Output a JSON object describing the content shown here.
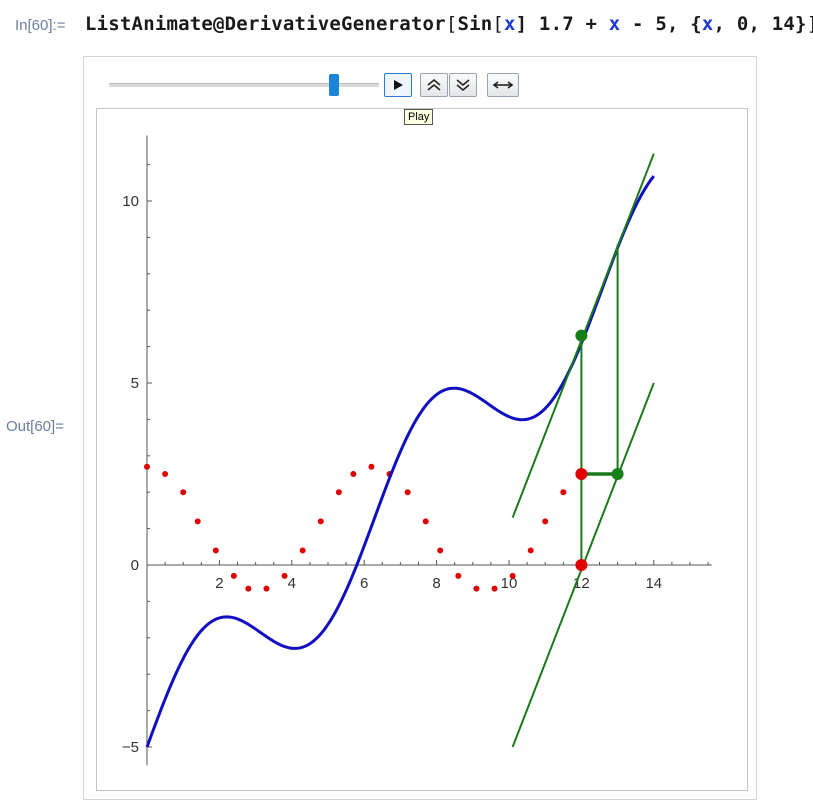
{
  "cell": {
    "in_label": "In[60]:=",
    "out_label": "Out[60]=",
    "code": {
      "fn": "ListAnimate@DerivativeGenerator",
      "open": "[",
      "sin": "Sin",
      "x": "x",
      "after_sin": "] 1.7 + ",
      "minus5": " - 5, {",
      "iter": ", 0, 14}",
      "close": "]"
    }
  },
  "controls": {
    "slider_value": 0.87,
    "tooltip": "Play",
    "play_icon": "play-icon",
    "faster_icon": "double-chevron-up-icon",
    "slower_icon": "double-chevron-down-icon",
    "direction_icon": "left-right-arrow-icon"
  },
  "chart_data": {
    "type": "line",
    "function": "Sin[x] 1.7 + x - 5",
    "xlim": [
      0,
      15.6
    ],
    "ylim": [
      -5.5,
      11.8
    ],
    "x_ticks": [
      2,
      4,
      6,
      8,
      10,
      12,
      14
    ],
    "y_ticks": [
      -5,
      0,
      5,
      10
    ],
    "curve_color": "#1010c0",
    "tangent_color": "#1a7a1a",
    "marker_red": "#e00000",
    "marker_green": "#188018",
    "derivative_points": [
      [
        0.0,
        2.7
      ],
      [
        0.5,
        2.5
      ],
      [
        1.0,
        2.0
      ],
      [
        1.4,
        1.2
      ],
      [
        1.9,
        0.4
      ],
      [
        2.4,
        -0.3
      ],
      [
        2.8,
        -0.65
      ],
      [
        3.3,
        -0.65
      ],
      [
        3.8,
        -0.3
      ],
      [
        4.3,
        0.4
      ],
      [
        4.8,
        1.2
      ],
      [
        5.3,
        2.0
      ],
      [
        5.7,
        2.5
      ],
      [
        6.2,
        2.7
      ],
      [
        6.7,
        2.5
      ],
      [
        7.2,
        2.0
      ],
      [
        7.7,
        1.2
      ],
      [
        8.1,
        0.4
      ],
      [
        8.6,
        -0.3
      ],
      [
        9.1,
        -0.65
      ],
      [
        9.6,
        -0.65
      ],
      [
        10.1,
        -0.3
      ],
      [
        10.6,
        0.4
      ],
      [
        11.0,
        1.2
      ],
      [
        11.5,
        2.0
      ]
    ],
    "current_x": 12,
    "current_fx": 6.3,
    "current_slope": 2.5,
    "slope_step_x": 13,
    "slope_step_y": 8.8,
    "tangent1": [
      [
        10.1,
        1.3
      ],
      [
        14.0,
        11.3
      ]
    ],
    "tangent2": [
      [
        10.1,
        -5.0
      ],
      [
        14.0,
        5.0
      ]
    ]
  }
}
